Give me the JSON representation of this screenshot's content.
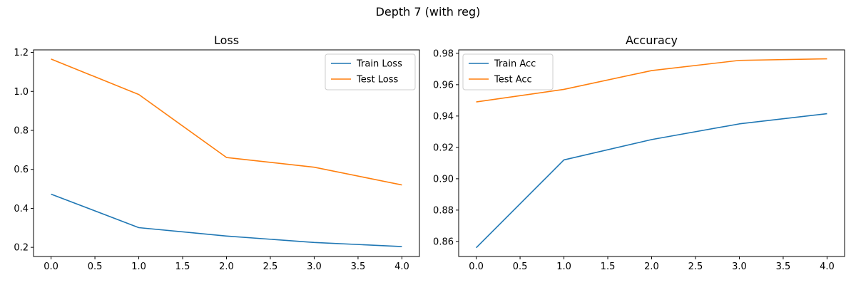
{
  "figure": {
    "suptitle": "Depth 7 (with reg)"
  },
  "chart_data": [
    {
      "type": "line",
      "title": "Loss",
      "xlabel": "",
      "ylabel": "",
      "x": [
        0,
        1,
        2,
        3,
        4
      ],
      "xlim": [
        -0.2,
        4.2
      ],
      "ylim": [
        0.153,
        1.213
      ],
      "xticks": [
        0.0,
        0.5,
        1.0,
        1.5,
        2.0,
        2.5,
        3.0,
        3.5,
        4.0
      ],
      "xtick_labels": [
        "0.0",
        "0.5",
        "1.0",
        "1.5",
        "2.0",
        "2.5",
        "3.0",
        "3.5",
        "4.0"
      ],
      "yticks": [
        0.2,
        0.4,
        0.6,
        0.8,
        1.0,
        1.2
      ],
      "ytick_labels": [
        "0.2",
        "0.4",
        "0.6",
        "0.8",
        "1.0",
        "1.2"
      ],
      "legend_position": "upper right",
      "grid": false,
      "series": [
        {
          "name": "Train Loss",
          "color": "#1f77b4",
          "values": [
            0.473,
            0.301,
            0.258,
            0.225,
            0.204
          ]
        },
        {
          "name": "Test Loss",
          "color": "#ff7f0e",
          "values": [
            1.166,
            0.984,
            0.661,
            0.611,
            0.52
          ]
        }
      ]
    },
    {
      "type": "line",
      "title": "Accuracy",
      "xlabel": "",
      "ylabel": "",
      "x": [
        0,
        1,
        2,
        3,
        4
      ],
      "xlim": [
        -0.2,
        4.2
      ],
      "ylim": [
        0.8504,
        0.9822
      ],
      "xticks": [
        0.0,
        0.5,
        1.0,
        1.5,
        2.0,
        2.5,
        3.0,
        3.5,
        4.0
      ],
      "xtick_labels": [
        "0.0",
        "0.5",
        "1.0",
        "1.5",
        "2.0",
        "2.5",
        "3.0",
        "3.5",
        "4.0"
      ],
      "yticks": [
        0.86,
        0.88,
        0.9,
        0.92,
        0.94,
        0.96,
        0.98
      ],
      "ytick_labels": [
        "0.86",
        "0.88",
        "0.90",
        "0.92",
        "0.94",
        "0.96",
        "0.98"
      ],
      "legend_position": "upper left",
      "grid": false,
      "series": [
        {
          "name": "Train Acc",
          "color": "#1f77b4",
          "values": [
            0.856,
            0.912,
            0.925,
            0.935,
            0.9415
          ]
        },
        {
          "name": "Test Acc",
          "color": "#ff7f0e",
          "values": [
            0.949,
            0.957,
            0.969,
            0.9755,
            0.9765
          ]
        }
      ]
    }
  ]
}
